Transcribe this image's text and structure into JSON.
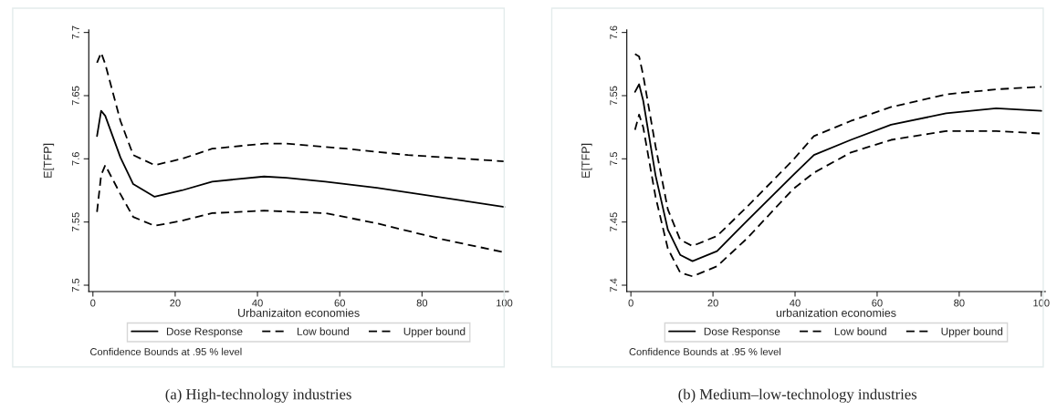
{
  "chart_data": [
    {
      "type": "line",
      "title": "(a) High-technology industries",
      "xlabel": "Urbanizaiton economies",
      "ylabel": "E[TFP]",
      "xlim": [
        -1,
        101
      ],
      "ylim": [
        7.495,
        7.702
      ],
      "xticks": [
        0,
        20,
        40,
        60,
        80,
        100
      ],
      "yticks": [
        7.5,
        7.55,
        7.6,
        7.65,
        7.7
      ],
      "grid": false,
      "legend": "bottom",
      "annotations": [
        "Confidence Bounds at .95 % level"
      ],
      "series": [
        {
          "name": "Dose Response",
          "color": "#000000",
          "line_style": "solid",
          "x": [
            1,
            2,
            3,
            6.7,
            9.8,
            15,
            21.6,
            29,
            41.6,
            47,
            56.5,
            69,
            100
          ],
          "values": [
            7.618,
            7.638,
            7.634,
            7.601,
            7.58,
            7.57,
            7.575,
            7.582,
            7.586,
            7.585,
            7.582,
            7.577,
            7.562
          ]
        },
        {
          "name": "Low bound",
          "color": "#000000",
          "line_style": "dashed",
          "x": [
            1,
            2,
            3,
            6.7,
            9.8,
            15,
            21.6,
            29,
            41.6,
            56.5,
            69,
            84,
            100
          ],
          "values": [
            7.558,
            7.587,
            7.595,
            7.572,
            7.554,
            7.547,
            7.551,
            7.557,
            7.559,
            7.557,
            7.549,
            7.537,
            7.526
          ]
        },
        {
          "name": "Upper bound",
          "color": "#000000",
          "line_style": "dashed",
          "x": [
            1,
            2,
            3,
            6.7,
            9.8,
            15,
            21.6,
            29,
            41.6,
            47,
            61.7,
            76.6,
            100
          ],
          "values": [
            7.676,
            7.684,
            7.675,
            7.63,
            7.603,
            7.595,
            7.6,
            7.608,
            7.612,
            7.612,
            7.608,
            7.603,
            7.598
          ]
        }
      ]
    },
    {
      "type": "line",
      "title": "(b) Medium–low-technology industries",
      "xlabel": "urbanization economies",
      "ylabel": "E[TFP]",
      "xlim": [
        -1,
        101
      ],
      "ylim": [
        7.395,
        7.602
      ],
      "xticks": [
        0,
        20,
        40,
        60,
        80,
        100
      ],
      "yticks": [
        7.4,
        7.45,
        7.5,
        7.55,
        7.6
      ],
      "grid": false,
      "legend": "bottom",
      "annotations": [
        "Confidence Bounds at .95 % level"
      ],
      "series": [
        {
          "name": "Dose Response",
          "color": "#000000",
          "line_style": "solid",
          "x": [
            1,
            2,
            3,
            6,
            9,
            12,
            15,
            21,
            28.3,
            39.5,
            44.6,
            53.6,
            63.4,
            76.8,
            89,
            100
          ],
          "values": [
            7.553,
            7.559,
            7.546,
            7.487,
            7.444,
            7.424,
            7.419,
            7.427,
            7.451,
            7.487,
            7.503,
            7.515,
            7.527,
            7.536,
            7.54,
            7.538
          ]
        },
        {
          "name": "Low bound",
          "color": "#000000",
          "line_style": "dashed",
          "x": [
            1,
            2,
            3,
            6,
            9,
            12,
            15,
            21,
            28.3,
            39.5,
            44.6,
            53.6,
            63.4,
            76.8,
            89,
            100
          ],
          "values": [
            7.523,
            7.535,
            7.525,
            7.47,
            7.429,
            7.41,
            7.407,
            7.415,
            7.437,
            7.476,
            7.489,
            7.505,
            7.515,
            7.522,
            7.522,
            7.52
          ]
        },
        {
          "name": "Upper bound",
          "color": "#000000",
          "line_style": "dashed",
          "x": [
            1,
            2,
            3,
            6,
            9,
            12,
            15,
            21,
            28.3,
            39.5,
            44.6,
            53.6,
            63.4,
            76.8,
            89,
            100
          ],
          "values": [
            7.583,
            7.581,
            7.566,
            7.51,
            7.46,
            7.436,
            7.431,
            7.439,
            7.462,
            7.499,
            7.518,
            7.53,
            7.541,
            7.551,
            7.555,
            7.557
          ]
        }
      ]
    }
  ]
}
